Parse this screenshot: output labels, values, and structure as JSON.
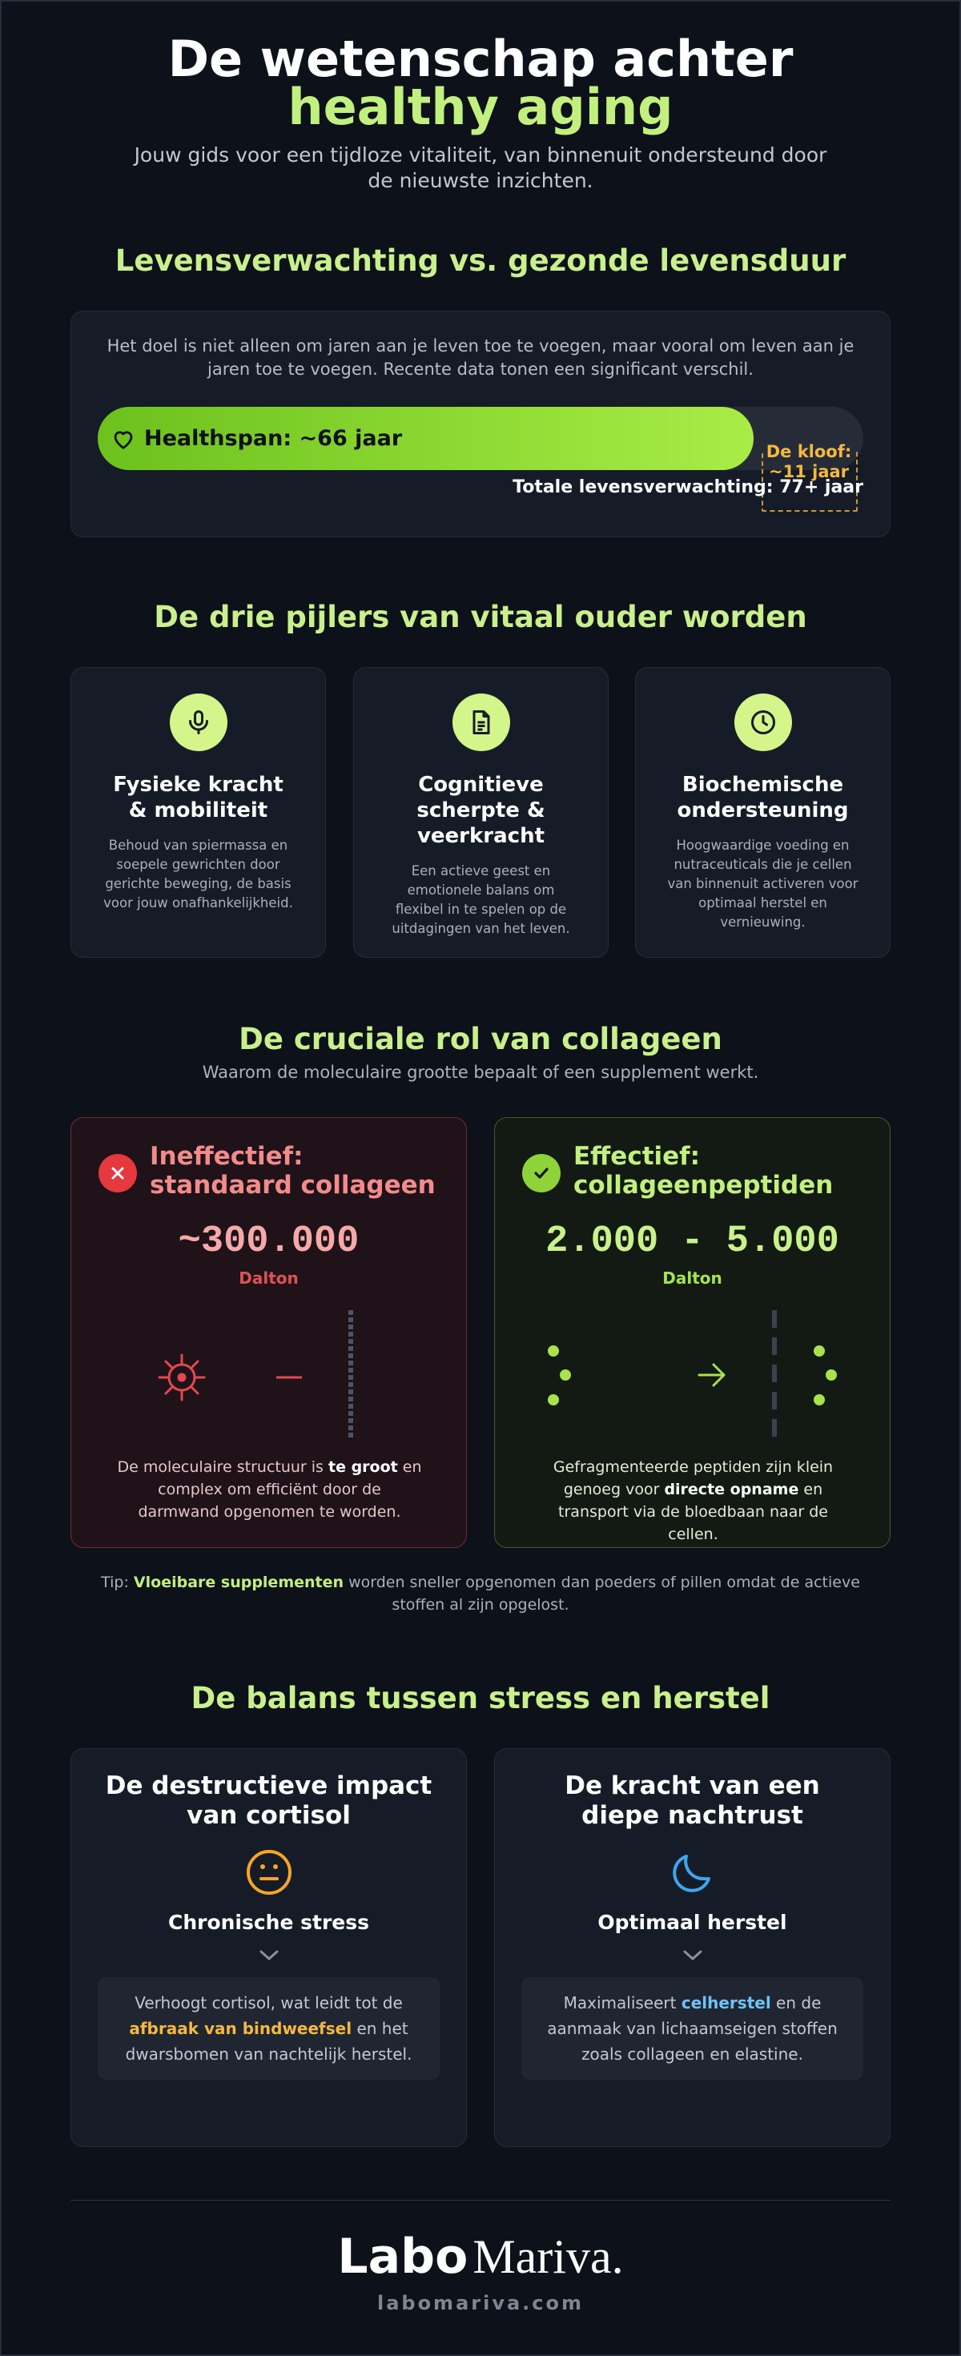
{
  "header": {
    "title_line1": "De wetenschap achter",
    "title_line2": "healthy aging",
    "subtitle": "Jouw gids voor een tijdloze vitaliteit, van binnenuit ondersteund door de nieuwste inzichten."
  },
  "lifespan": {
    "heading": "Levensverwachting vs. gezonde levensduur",
    "intro": "Het doel is niet alleen om jaren aan je leven toe te voegen, maar vooral om leven aan je jaren toe te voegen. Recente data tonen een significant verschil.",
    "healthspan_label": "Healthspan: ~66 jaar",
    "gap_label": "De kloof: ~11 jaar",
    "total_label": "Totale levensverwachting: 77+ jaar"
  },
  "pillars": {
    "heading": "De drie pijlers van vitaal ouder worden",
    "items": [
      {
        "title": "Fysieke kracht & mobiliteit",
        "description": "Behoud van spiermassa en soepele gewrichten door gerichte beweging, de basis voor jouw onafhankelijkheid."
      },
      {
        "title": "Cognitieve scherpte & veerkracht",
        "description": "Een actieve geest en emotionele balans om flexibel in te spelen op de uitdagingen van het leven."
      },
      {
        "title": "Biochemische ondersteuning",
        "description": "Hoogwaardige voeding en nutraceuticals die je cellen van binnenuit activeren voor optimaal herstel en vernieuwing."
      }
    ]
  },
  "collagen": {
    "heading": "De cruciale rol van collageen",
    "subtitle": "Waarom de moleculaire grootte bepaalt of een supplement werkt.",
    "cards": [
      {
        "title_lines": [
          "Ineffectief:",
          "standaard collageen"
        ],
        "amount": "~300.000",
        "unit": "Dalton",
        "description": [
          "De moleculaire structuur is ",
          "te groot",
          " en complex om efficiënt door de darmwand opgenomen te worden."
        ]
      },
      {
        "title_lines": [
          "Effectief:",
          "collageenpeptiden"
        ],
        "amount": "2.000 - 5.000",
        "unit": "Dalton",
        "description": [
          "Gefragmenteerde peptiden zijn klein genoeg voor ",
          "directe opname",
          " en transport via de bloedbaan naar de cellen."
        ]
      }
    ],
    "tip": [
      "Tip: ",
      "Vloeibare supplementen",
      " worden sneller opgenomen dan poeders of pillen omdat de actieve stoffen al zijn opgelost."
    ]
  },
  "balance": {
    "heading": "De balans tussen stress en herstel",
    "cards": [
      {
        "title": "De destructieve impact van cortisol",
        "label": "Chronische stress",
        "description": [
          "Verhoogt cortisol, wat leidt tot de ",
          "afbraak van bindweefsel",
          " en het dwarsbomen van nachtelijk herstel."
        ]
      },
      {
        "title": "De kracht van een diepe nachtrust",
        "label": "Optimaal herstel",
        "description": [
          "Maximaliseert ",
          "celherstel",
          " en de aanmaak van lichaamseigen stoffen zoals collageen en elastine."
        ]
      }
    ]
  },
  "footer": {
    "logo_bold": "Labo",
    "logo_light": "Mariva.",
    "url": "labomariva.com"
  }
}
